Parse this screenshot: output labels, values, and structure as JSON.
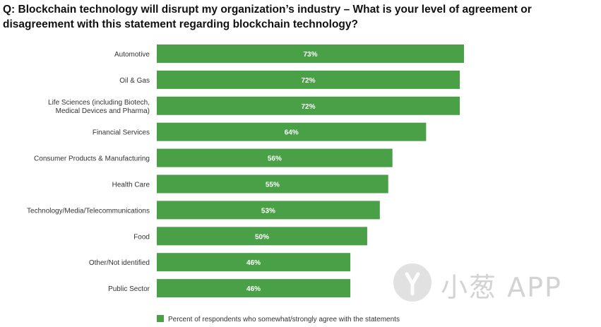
{
  "title": "Q: Blockchain technology will disrupt my organization’s industry – What is your level of agreement or disagreement with this statement regarding blockchain technology?",
  "watermark": {
    "text": "小葱 APP",
    "icon": "green-onion-logo"
  },
  "colors": {
    "bar": "#4aa046",
    "bar_label": "#ffffff",
    "axis_label": "#333333"
  },
  "chart_data": {
    "type": "bar",
    "orientation": "horizontal",
    "categories": [
      [
        "Automotive"
      ],
      [
        "Oil & Gas"
      ],
      [
        "Life Sciences (including Biotech,",
        "Medical Devices and Pharma)"
      ],
      [
        "Financial Services"
      ],
      [
        "Consumer Products & Manufacturing"
      ],
      [
        "Health Care"
      ],
      [
        "Technology/Media/Telecommunications"
      ],
      [
        "Food"
      ],
      [
        "Other/Not identified"
      ],
      [
        "Public Sector"
      ]
    ],
    "series": [
      {
        "name": "Percent of respondents who somewhat/strongly agree with the statements",
        "values": [
          73,
          72,
          72,
          64,
          56,
          55,
          53,
          50,
          46,
          46
        ]
      }
    ],
    "value_suffix": "%",
    "xlim": [
      0,
      73
    ],
    "grid": false,
    "legend_position": "bottom"
  }
}
